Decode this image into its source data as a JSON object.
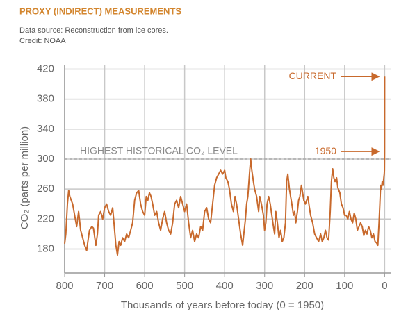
{
  "chart_data": {
    "type": "line",
    "title": "PROXY (INDIRECT) MEASUREMENTS",
    "subtitle": "Data source: Reconstruction from ice cores.",
    "credit": "Credit: NOAA",
    "x_label": "Thousands of years before today (0 = 1950)",
    "y_label": "CO₂ (parts per million)",
    "xlim": [
      800,
      -15
    ],
    "ylim": [
      148,
      426
    ],
    "xticks": [
      800,
      700,
      600,
      500,
      400,
      300,
      200,
      100,
      0
    ],
    "yticks": [
      180,
      220,
      260,
      300,
      340,
      380,
      420
    ],
    "grid": true,
    "reference_line": {
      "value": 300,
      "label": "HIGHEST HISTORICAL CO₂ LEVEL"
    },
    "annotations": [
      {
        "text": "CURRENT",
        "y": 410
      },
      {
        "text": "1950",
        "y": 310
      }
    ],
    "series": [
      {
        "name": "CO₂",
        "color": "#c8692c",
        "x": [
          800,
          797,
          793,
          790,
          787,
          780,
          775,
          770,
          765,
          760,
          755,
          750,
          745,
          742,
          738,
          732,
          728,
          722,
          718,
          715,
          710,
          705,
          700,
          695,
          690,
          685,
          680,
          676,
          672,
          668,
          664,
          660,
          655,
          650,
          645,
          640,
          635,
          630,
          625,
          620,
          615,
          610,
          605,
          600,
          596,
          592,
          588,
          584,
          580,
          575,
          570,
          565,
          560,
          555,
          550,
          545,
          540,
          535,
          530,
          525,
          520,
          515,
          510,
          505,
          500,
          495,
          490,
          485,
          480,
          475,
          470,
          465,
          460,
          455,
          450,
          445,
          440,
          435,
          430,
          425,
          420,
          415,
          410,
          405,
          400,
          397,
          392,
          388,
          383,
          378,
          374,
          370,
          365,
          360,
          355,
          352,
          348,
          345,
          342,
          338,
          335,
          332,
          328,
          325,
          320,
          315,
          312,
          308,
          303,
          300,
          297,
          294,
          290,
          286,
          282,
          278,
          275,
          272,
          268,
          264,
          260,
          256,
          252,
          248,
          245,
          242,
          238,
          235,
          232,
          228,
          225,
          222,
          218,
          215,
          212,
          208,
          205,
          202,
          198,
          195,
          192,
          188,
          185,
          180,
          175,
          170,
          165,
          160,
          156,
          152,
          148,
          144,
          140,
          136,
          133,
          130,
          127,
          124,
          120,
          117,
          112,
          108,
          104,
          100,
          96,
          92,
          88,
          84,
          80,
          76,
          72,
          68,
          64,
          60,
          56,
          52,
          48,
          44,
          40,
          36,
          32,
          28,
          24,
          20,
          17,
          14,
          12,
          10,
          8,
          6,
          4,
          2,
          1,
          0.5,
          0.1,
          0
        ],
        "values": [
          187,
          200,
          240,
          258,
          250,
          240,
          225,
          210,
          230,
          205,
          195,
          185,
          178,
          190,
          205,
          210,
          208,
          185,
          200,
          225,
          230,
          220,
          235,
          240,
          230,
          225,
          235,
          210,
          185,
          172,
          190,
          185,
          195,
          190,
          200,
          195,
          205,
          215,
          245,
          255,
          258,
          240,
          230,
          225,
          250,
          245,
          255,
          250,
          240,
          225,
          230,
          215,
          205,
          220,
          230,
          215,
          205,
          200,
          215,
          240,
          245,
          235,
          250,
          240,
          230,
          240,
          215,
          195,
          205,
          190,
          200,
          195,
          210,
          205,
          230,
          235,
          220,
          215,
          240,
          265,
          275,
          280,
          285,
          280,
          285,
          275,
          270,
          260,
          240,
          230,
          250,
          240,
          220,
          200,
          185,
          200,
          220,
          240,
          250,
          280,
          300,
          285,
          270,
          260,
          250,
          230,
          250,
          240,
          225,
          205,
          215,
          240,
          250,
          240,
          225,
          210,
          200,
          230,
          215,
          195,
          205,
          190,
          195,
          215,
          270,
          280,
          260,
          250,
          240,
          225,
          230,
          215,
          230,
          245,
          250,
          265,
          255,
          245,
          240,
          245,
          250,
          235,
          225,
          215,
          200,
          195,
          190,
          200,
          190,
          195,
          205,
          195,
          192,
          230,
          270,
          287,
          275,
          270,
          275,
          262,
          255,
          240,
          235,
          225,
          225,
          220,
          230,
          220,
          215,
          228,
          220,
          205,
          210,
          215,
          210,
          198,
          205,
          200,
          210,
          205,
          195,
          200,
          190,
          188,
          185,
          215,
          240,
          265,
          260,
          270,
          265,
          275,
          280,
          285,
          310,
          410
        ]
      }
    ]
  }
}
